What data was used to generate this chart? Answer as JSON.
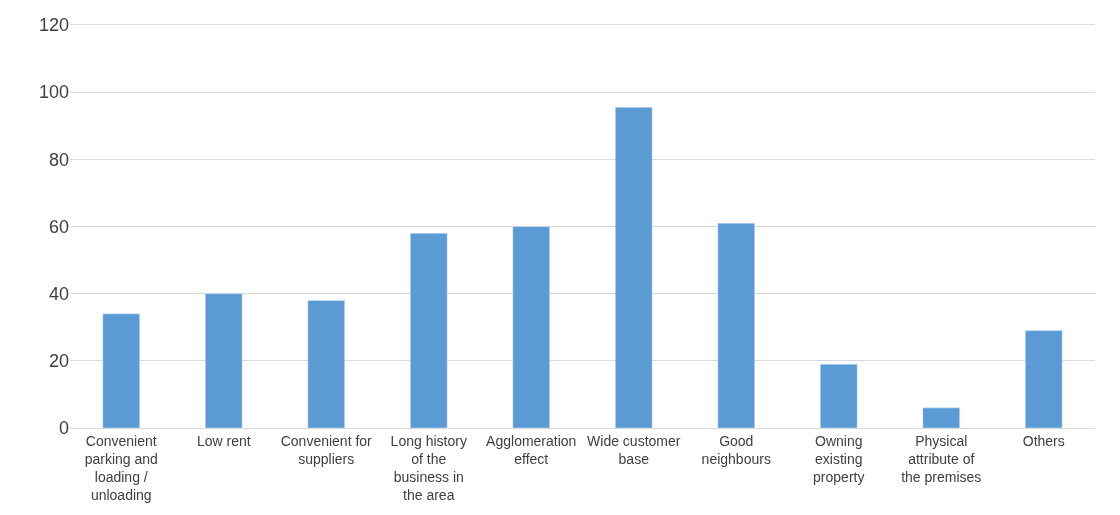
{
  "chart_data": {
    "type": "bar",
    "categories": [
      "Convenient parking and loading / unloading",
      "Low rent",
      "Convenient for suppliers",
      "Long history of the business in the area",
      "Agglomeration effect",
      "Wide customer base",
      "Good neighbours",
      "Owning existing property",
      "Physical attribute of the premises",
      "Others"
    ],
    "values": [
      34,
      40,
      38,
      58,
      60,
      95.5,
      61,
      19,
      6,
      29
    ],
    "color": "#5b9bd5",
    "ylim": [
      0,
      120
    ],
    "yticks": [
      0,
      20,
      40,
      60,
      80,
      100,
      120
    ],
    "grid": "y"
  }
}
